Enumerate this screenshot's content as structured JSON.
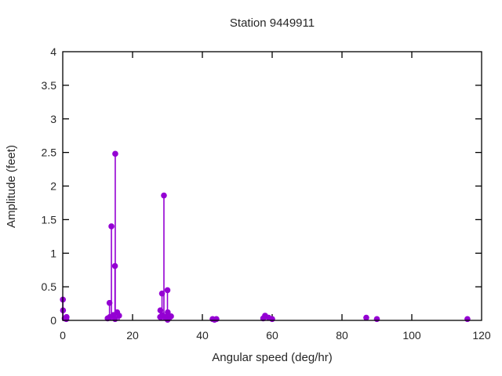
{
  "header": {
    "title": "Station 9449911"
  },
  "chart_data": {
    "type": "scatter",
    "style": "impulses-with-points",
    "title": "Station 9449911",
    "xlabel": "Angular speed (deg/hr)",
    "ylabel": "Amplitude (feet)",
    "xlim": [
      0,
      120
    ],
    "ylim": [
      0,
      4
    ],
    "x_ticks": [
      0,
      20,
      40,
      60,
      80,
      100,
      120
    ],
    "y_ticks": [
      0,
      0.5,
      1,
      1.5,
      2,
      2.5,
      3,
      3.5,
      4
    ],
    "grid": false,
    "legend": "none",
    "marker_color": "#9400d3",
    "axis_color": "#000000",
    "text_color": "#262626",
    "x": [
      0.041,
      0.082,
      0.544,
      1.016,
      1.098,
      12.854,
      13.399,
      13.472,
      13.943,
      14.497,
      14.959,
      15.0,
      15.041,
      15.585,
      16.139,
      27.895,
      27.968,
      28.44,
      28.513,
      28.984,
      29.456,
      29.528,
      29.959,
      30.0,
      30.041,
      30.082,
      31.016,
      42.927,
      43.476,
      44.025,
      57.424,
      57.968,
      58.984,
      60.0,
      86.952,
      90.0,
      115.936
    ],
    "y": [
      0.31,
      0.15,
      0.03,
      0.02,
      0.05,
      0.03,
      0.26,
      0.05,
      1.4,
      0.08,
      0.81,
      0.02,
      2.48,
      0.12,
      0.07,
      0.05,
      0.15,
      0.4,
      0.08,
      1.86,
      0.04,
      0.05,
      0.03,
      0.45,
      0.01,
      0.12,
      0.06,
      0.02,
      0.01,
      0.02,
      0.03,
      0.07,
      0.04,
      0.02,
      0.04,
      0.02,
      0.02
    ]
  }
}
